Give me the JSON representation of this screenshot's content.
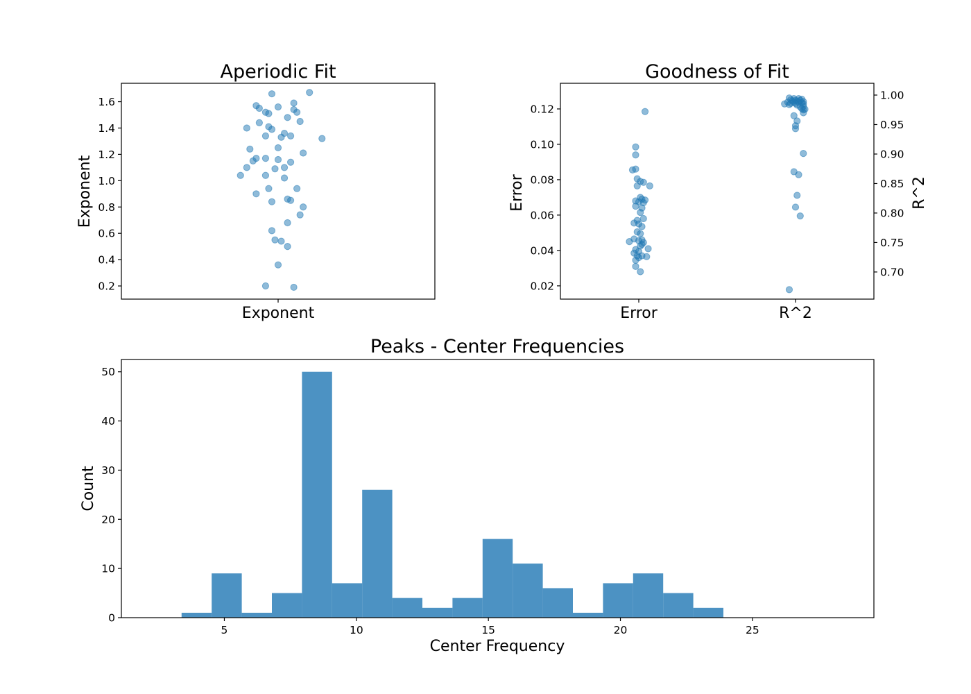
{
  "chart_data": [
    {
      "type": "scatter",
      "title": "Aperiodic Fit",
      "ylabel": "Exponent",
      "categories": [
        "Exponent"
      ],
      "ylim": [
        0.1,
        1.74
      ],
      "yticks": [
        0.2,
        0.4,
        0.6,
        0.8,
        1.0,
        1.2,
        1.4,
        1.6
      ],
      "ytick_labels": [
        "0.2",
        "0.4",
        "0.6",
        "0.8",
        "1.0",
        "1.2",
        "1.4",
        "1.6"
      ],
      "points": [
        {
          "x": -0.02,
          "y": 1.66
        },
        {
          "x": 0.1,
          "y": 1.67
        },
        {
          "x": -0.07,
          "y": 1.57
        },
        {
          "x": 0.0,
          "y": 1.56
        },
        {
          "x": 0.05,
          "y": 1.59
        },
        {
          "x": -0.06,
          "y": 1.55
        },
        {
          "x": 0.05,
          "y": 1.54
        },
        {
          "x": -0.04,
          "y": 1.52
        },
        {
          "x": 0.06,
          "y": 1.52
        },
        {
          "x": -0.03,
          "y": 1.51
        },
        {
          "x": 0.03,
          "y": 1.48
        },
        {
          "x": 0.07,
          "y": 1.45
        },
        {
          "x": -0.06,
          "y": 1.44
        },
        {
          "x": -0.03,
          "y": 1.41
        },
        {
          "x": -0.1,
          "y": 1.4
        },
        {
          "x": -0.02,
          "y": 1.39
        },
        {
          "x": 0.02,
          "y": 1.36
        },
        {
          "x": -0.04,
          "y": 1.34
        },
        {
          "x": 0.04,
          "y": 1.34
        },
        {
          "x": 0.01,
          "y": 1.33
        },
        {
          "x": 0.14,
          "y": 1.32
        },
        {
          "x": 0.0,
          "y": 1.25
        },
        {
          "x": -0.09,
          "y": 1.24
        },
        {
          "x": 0.08,
          "y": 1.21
        },
        {
          "x": -0.07,
          "y": 1.17
        },
        {
          "x": -0.04,
          "y": 1.17
        },
        {
          "x": 0.0,
          "y": 1.16
        },
        {
          "x": -0.08,
          "y": 1.15
        },
        {
          "x": 0.04,
          "y": 1.14
        },
        {
          "x": -0.1,
          "y": 1.1
        },
        {
          "x": 0.02,
          "y": 1.1
        },
        {
          "x": -0.01,
          "y": 1.09
        },
        {
          "x": -0.12,
          "y": 1.04
        },
        {
          "x": -0.04,
          "y": 1.04
        },
        {
          "x": 0.02,
          "y": 1.02
        },
        {
          "x": -0.03,
          "y": 0.94
        },
        {
          "x": 0.06,
          "y": 0.94
        },
        {
          "x": -0.07,
          "y": 0.9
        },
        {
          "x": 0.03,
          "y": 0.86
        },
        {
          "x": 0.04,
          "y": 0.85
        },
        {
          "x": -0.02,
          "y": 0.84
        },
        {
          "x": 0.08,
          "y": 0.8
        },
        {
          "x": 0.07,
          "y": 0.74
        },
        {
          "x": 0.03,
          "y": 0.68
        },
        {
          "x": -0.02,
          "y": 0.62
        },
        {
          "x": -0.01,
          "y": 0.55
        },
        {
          "x": 0.01,
          "y": 0.54
        },
        {
          "x": 0.03,
          "y": 0.5
        },
        {
          "x": 0.0,
          "y": 0.36
        },
        {
          "x": -0.04,
          "y": 0.2
        },
        {
          "x": 0.05,
          "y": 0.19
        }
      ]
    },
    {
      "type": "scatter",
      "title": "Goodness of Fit",
      "ylabel": "Error",
      "y2label": "R^2",
      "categories": [
        "Error",
        "R^2"
      ],
      "ylim": [
        0.0125,
        0.1345
      ],
      "yticks": [
        0.02,
        0.04,
        0.06,
        0.08,
        0.1,
        0.12
      ],
      "ytick_labels": [
        "0.02",
        "0.04",
        "0.06",
        "0.08",
        "0.10",
        "0.12"
      ],
      "y2lim": [
        0.654,
        1.02
      ],
      "y2ticks": [
        0.7,
        0.75,
        0.8,
        0.85,
        0.9,
        0.95,
        1.0
      ],
      "y2tick_labels": [
        "0.70",
        "0.75",
        "0.80",
        "0.85",
        "0.90",
        "0.95",
        "1.00"
      ],
      "error_points": [
        {
          "x": 0.04,
          "y": 0.1185
        },
        {
          "x": -0.02,
          "y": 0.0985
        },
        {
          "x": -0.02,
          "y": 0.094
        },
        {
          "x": -0.04,
          "y": 0.0855
        },
        {
          "x": -0.02,
          "y": 0.086
        },
        {
          "x": -0.01,
          "y": 0.0805
        },
        {
          "x": 0.01,
          "y": 0.079
        },
        {
          "x": 0.03,
          "y": 0.0785
        },
        {
          "x": 0.07,
          "y": 0.0765
        },
        {
          "x": -0.01,
          "y": 0.0765
        },
        {
          "x": 0.01,
          "y": 0.07
        },
        {
          "x": 0.02,
          "y": 0.069
        },
        {
          "x": 0.04,
          "y": 0.0685
        },
        {
          "x": -0.02,
          "y": 0.068
        },
        {
          "x": 0.0,
          "y": 0.0675
        },
        {
          "x": 0.03,
          "y": 0.067
        },
        {
          "x": -0.02,
          "y": 0.065
        },
        {
          "x": 0.02,
          "y": 0.064
        },
        {
          "x": 0.01,
          "y": 0.0615
        },
        {
          "x": 0.03,
          "y": 0.058
        },
        {
          "x": -0.01,
          "y": 0.057
        },
        {
          "x": -0.03,
          "y": 0.0555
        },
        {
          "x": 0.0,
          "y": 0.055
        },
        {
          "x": 0.02,
          "y": 0.0535
        },
        {
          "x": -0.01,
          "y": 0.0505
        },
        {
          "x": 0.01,
          "y": 0.0495
        },
        {
          "x": -0.03,
          "y": 0.0465
        },
        {
          "x": 0.02,
          "y": 0.046
        },
        {
          "x": -0.06,
          "y": 0.045
        },
        {
          "x": 0.0,
          "y": 0.0455
        },
        {
          "x": 0.03,
          "y": 0.0445
        },
        {
          "x": 0.02,
          "y": 0.0435
        },
        {
          "x": 0.01,
          "y": 0.0425
        },
        {
          "x": 0.06,
          "y": 0.041
        },
        {
          "x": -0.02,
          "y": 0.0405
        },
        {
          "x": 0.0,
          "y": 0.0395
        },
        {
          "x": -0.03,
          "y": 0.0385
        },
        {
          "x": -0.01,
          "y": 0.037
        },
        {
          "x": 0.02,
          "y": 0.037
        },
        {
          "x": 0.05,
          "y": 0.0365
        },
        {
          "x": 0.0,
          "y": 0.036
        },
        {
          "x": -0.02,
          "y": 0.0345
        },
        {
          "x": -0.02,
          "y": 0.031
        },
        {
          "x": 0.01,
          "y": 0.028
        }
      ],
      "r2_points": [
        {
          "x": -0.04,
          "y": 0.995
        },
        {
          "x": -0.01,
          "y": 0.994
        },
        {
          "x": 0.02,
          "y": 0.994
        },
        {
          "x": 0.04,
          "y": 0.993
        },
        {
          "x": -0.03,
          "y": 0.992
        },
        {
          "x": 0.0,
          "y": 0.991
        },
        {
          "x": 0.03,
          "y": 0.991
        },
        {
          "x": -0.02,
          "y": 0.99
        },
        {
          "x": 0.01,
          "y": 0.99
        },
        {
          "x": 0.05,
          "y": 0.989
        },
        {
          "x": -0.05,
          "y": 0.988
        },
        {
          "x": -0.01,
          "y": 0.988
        },
        {
          "x": 0.02,
          "y": 0.988
        },
        {
          "x": 0.04,
          "y": 0.987
        },
        {
          "x": -0.03,
          "y": 0.986
        },
        {
          "x": 0.0,
          "y": 0.986
        },
        {
          "x": -0.07,
          "y": 0.985
        },
        {
          "x": 0.05,
          "y": 0.985
        },
        {
          "x": -0.04,
          "y": 0.984
        },
        {
          "x": 0.01,
          "y": 0.983
        },
        {
          "x": 0.05,
          "y": 0.981
        },
        {
          "x": 0.03,
          "y": 0.98
        },
        {
          "x": 0.04,
          "y": 0.977
        },
        {
          "x": 0.06,
          "y": 0.976
        },
        {
          "x": 0.05,
          "y": 0.975
        },
        {
          "x": 0.05,
          "y": 0.97
        },
        {
          "x": -0.01,
          "y": 0.965
        },
        {
          "x": 0.01,
          "y": 0.956
        },
        {
          "x": 0.0,
          "y": 0.948
        },
        {
          "x": 0.0,
          "y": 0.943
        },
        {
          "x": 0.05,
          "y": 0.901
        },
        {
          "x": -0.01,
          "y": 0.87
        },
        {
          "x": 0.02,
          "y": 0.865
        },
        {
          "x": 0.01,
          "y": 0.83
        },
        {
          "x": 0.0,
          "y": 0.81
        },
        {
          "x": 0.03,
          "y": 0.795
        },
        {
          "x": -0.04,
          "y": 0.67
        }
      ]
    },
    {
      "type": "bar",
      "title": "Peaks - Center Frequencies",
      "xlabel": "Center Frequency",
      "ylabel": "Count",
      "xlim": [
        1.1,
        29.6
      ],
      "ylim": [
        0,
        52.5
      ],
      "xticks": [
        5,
        10,
        15,
        20,
        25
      ],
      "yticks": [
        0,
        10,
        20,
        30,
        40,
        50
      ],
      "bin_start": 3.38,
      "bin_width": 1.14,
      "values": [
        1,
        9,
        1,
        5,
        50,
        7,
        26,
        4,
        2,
        4,
        16,
        11,
        6,
        1,
        7,
        9,
        5,
        2
      ]
    }
  ]
}
